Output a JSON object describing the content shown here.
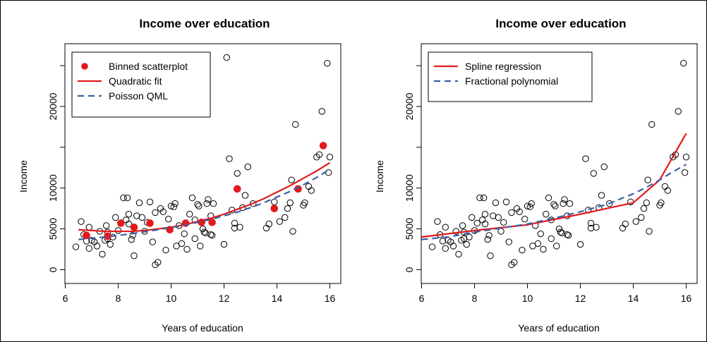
{
  "colors": {
    "red": "#e31a1c",
    "blue": "#3a5fa8",
    "black": "#000000"
  },
  "chart_data": [
    {
      "type": "scatter",
      "title": "Income over education",
      "xlabel": "Years of education",
      "ylabel": "Income",
      "xlim": [
        6,
        16
      ],
      "ylim": [
        0,
        25000
      ],
      "xticks": [
        6,
        8,
        10,
        12,
        14,
        16
      ],
      "yticks": [
        0,
        5000,
        10000,
        15000,
        20000,
        25000
      ],
      "ytick_labels": [
        "0",
        "5000",
        "10000",
        "",
        "20000",
        ""
      ],
      "grid": false,
      "legend_position": "top-left",
      "legend": [
        {
          "label": "Binned scatterplot",
          "style": "point",
          "color": "#e31a1c"
        },
        {
          "label": "Quadratic fit",
          "style": "solid",
          "color": "#e31a1c"
        },
        {
          "label": "Poisson QML",
          "style": "dashed",
          "color": "#3a5fa8"
        }
      ],
      "series": [
        {
          "name": "Binned scatterplot",
          "type": "points",
          "color": "#e31a1c",
          "x": [
            6.8,
            7.6,
            8.1,
            8.6,
            9.2,
            9.95,
            10.55,
            11.15,
            11.55,
            12.5,
            13.9,
            14.8,
            15.75
          ],
          "y": [
            4200,
            4100,
            5700,
            5200,
            5700,
            4900,
            5700,
            5800,
            5800,
            9900,
            7500,
            9900,
            15200
          ]
        },
        {
          "name": "Quadratic fit",
          "type": "line",
          "dash": false,
          "color": "#e31a1c",
          "x": [
            6.5,
            7.0,
            7.5,
            8.0,
            8.5,
            9.0,
            9.5,
            10.0,
            10.5,
            11.0,
            11.5,
            12.0,
            12.5,
            13.0,
            13.5,
            14.0,
            14.5,
            15.0,
            15.5,
            16.0
          ],
          "y": [
            4900,
            4800,
            4700,
            4700,
            4700,
            4800,
            5000,
            5200,
            5500,
            5900,
            6300,
            6800,
            7400,
            8000,
            8700,
            9500,
            10300,
            11200,
            12100,
            13100
          ]
        },
        {
          "name": "Poisson QML",
          "type": "line",
          "dash": true,
          "color": "#3a5fa8",
          "x": [
            6.5,
            7.0,
            7.5,
            8.0,
            8.5,
            9.0,
            9.5,
            10.0,
            10.5,
            11.0,
            11.5,
            12.0,
            12.5,
            13.0,
            13.5,
            14.0,
            14.5,
            15.0,
            15.5,
            16.0
          ],
          "y": [
            3700,
            3850,
            4000,
            4200,
            4400,
            4650,
            4900,
            5150,
            5450,
            5800,
            6150,
            6600,
            7050,
            7600,
            8200,
            8900,
            9600,
            10400,
            11300,
            12300
          ]
        }
      ]
    },
    {
      "type": "scatter",
      "title": "Income over education",
      "xlabel": "Years of education",
      "ylabel": "Income",
      "xlim": [
        6,
        16
      ],
      "ylim": [
        0,
        25000
      ],
      "xticks": [
        6,
        8,
        10,
        12,
        14,
        16
      ],
      "yticks": [
        0,
        5000,
        10000,
        15000,
        20000,
        25000
      ],
      "ytick_labels": [
        "0",
        "5000",
        "10000",
        "",
        "20000",
        ""
      ],
      "grid": false,
      "legend_position": "top-left",
      "legend": [
        {
          "label": "Spline regression",
          "style": "solid",
          "color": "#e31a1c"
        },
        {
          "label": "Fractional polynomial",
          "style": "dashed",
          "color": "#3a5fa8"
        }
      ],
      "series": [
        {
          "name": "Spline regression",
          "type": "line",
          "dash": false,
          "color": "#e31a1c",
          "x": [
            6,
            8,
            10,
            12,
            14,
            15,
            16
          ],
          "y": [
            4000,
            4800,
            5500,
            6800,
            8200,
            11000,
            16700
          ]
        },
        {
          "name": "Fractional polynomial",
          "type": "line",
          "dash": true,
          "color": "#3a5fa8",
          "x": [
            6,
            7,
            8,
            9,
            10,
            11,
            12,
            13,
            14,
            14.5,
            15,
            15.5,
            16
          ],
          "y": [
            3700,
            4000,
            4600,
            5100,
            5600,
            6300,
            7100,
            8000,
            9300,
            10100,
            11000,
            12000,
            12900
          ]
        }
      ]
    }
  ],
  "raw_points": {
    "x": [
      6.4,
      6.6,
      6.7,
      6.8,
      6.9,
      7.0,
      7.1,
      7.2,
      7.3,
      7.4,
      7.5,
      7.55,
      7.6,
      7.7,
      7.8,
      7.9,
      8.0,
      8.1,
      8.2,
      8.3,
      8.35,
      8.4,
      8.5,
      8.55,
      8.6,
      8.7,
      8.8,
      8.9,
      9.0,
      9.1,
      9.2,
      9.3,
      9.4,
      9.5,
      9.6,
      9.7,
      9.8,
      9.9,
      10.0,
      10.1,
      10.15,
      10.3,
      10.4,
      10.5,
      10.6,
      10.7,
      10.8,
      10.9,
      11.0,
      11.05,
      11.1,
      11.2,
      11.25,
      11.3,
      11.35,
      11.4,
      11.5,
      11.55,
      11.6,
      12.0,
      12.1,
      12.2,
      12.3,
      12.4,
      12.5,
      12.6,
      12.7,
      12.8,
      12.9,
      13.1,
      13.6,
      13.7,
      13.9,
      14.1,
      14.3,
      14.4,
      14.5,
      14.55,
      14.6,
      14.7,
      15.0,
      15.05,
      15.2,
      15.3,
      15.5,
      15.6,
      15.7,
      15.9,
      15.95,
      16.0,
      6.9,
      7.6,
      8.4,
      9.4,
      10.2,
      10.9,
      11.5,
      12.4
    ],
    "y": [
      2800,
      5900,
      4300,
      3500,
      5200,
      3600,
      3400,
      2900,
      4700,
      1900,
      3600,
      5400,
      4600,
      3100,
      4000,
      6400,
      4800,
      5700,
      8800,
      6100,
      8800,
      6800,
      3700,
      4200,
      1700,
      6600,
      8200,
      6400,
      4700,
      5800,
      8300,
      3400,
      600,
      900,
      7500,
      7100,
      2400,
      6200,
      7800,
      7700,
      8100,
      5400,
      3200,
      4400,
      2500,
      6800,
      8800,
      3800,
      8000,
      7800,
      2900,
      5000,
      4600,
      4500,
      8100,
      8600,
      6600,
      4200,
      8100,
      3100,
      26000,
      13600,
      7300,
      5100,
      11800,
      5200,
      7600,
      9100,
      12600,
      8100,
      5100,
      5600,
      8300,
      5900,
      6400,
      7500,
      8200,
      11000,
      4700,
      17800,
      7900,
      8200,
      10200,
      9700,
      13800,
      14100,
      19400,
      25300,
      11900,
      13800,
      2600,
      3800,
      5600,
      7000,
      2900,
      6100,
      4300,
      5700
    ]
  }
}
